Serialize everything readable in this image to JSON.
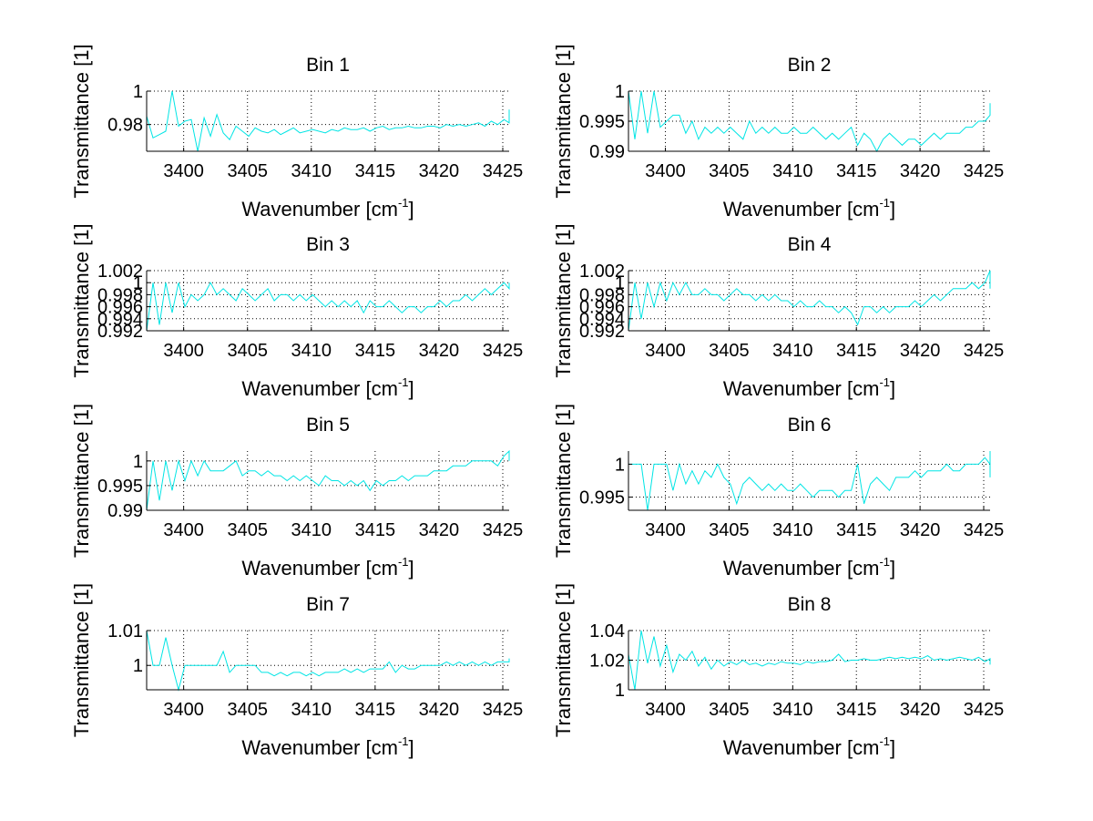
{
  "figure": {
    "background": "#ffffff",
    "line_color": "#00e5e5"
  },
  "chart_data": [
    {
      "type": "line",
      "title": "Bin 1",
      "xlabel": "Wavenumber [cm^-1]",
      "ylabel": "Transmittance [1]",
      "xlim": [
        3397.1,
        3425.5
      ],
      "ylim": [
        0.964,
        1.0
      ],
      "xticks": [
        3400,
        3405,
        3410,
        3415,
        3420,
        3425
      ],
      "xtick_labels": [
        "3400",
        "3405",
        "3410",
        "3415",
        "3420",
        "3425"
      ],
      "yticks": [
        0.98,
        1.0
      ],
      "ytick_labels": [
        "0.98",
        "1"
      ],
      "grid": true,
      "x_start": 3397.1,
      "x_step": 0.5,
      "values": [
        0.985,
        0.972,
        0.974,
        0.976,
        1.0,
        0.979,
        0.982,
        0.983,
        0.964,
        0.984,
        0.973,
        0.986,
        0.975,
        0.971,
        0.979,
        0.976,
        0.973,
        0.978,
        0.976,
        0.975,
        0.977,
        0.974,
        0.976,
        0.978,
        0.975,
        0.976,
        0.977,
        0.976,
        0.975,
        0.977,
        0.976,
        0.978,
        0.977,
        0.977,
        0.978,
        0.976,
        0.978,
        0.979,
        0.977,
        0.978,
        0.978,
        0.979,
        0.978,
        0.978,
        0.979,
        0.979,
        0.978,
        0.98,
        0.979,
        0.98,
        0.979,
        0.98,
        0.981,
        0.979,
        0.982,
        0.98,
        0.983,
        0.981,
        0.989
      ]
    },
    {
      "type": "line",
      "title": "Bin 2",
      "xlabel": "Wavenumber [cm^-1]",
      "ylabel": "Transmittance [1]",
      "xlim": [
        3397.1,
        3425.5
      ],
      "ylim": [
        0.99,
        1.0
      ],
      "xticks": [
        3400,
        3405,
        3410,
        3415,
        3420,
        3425
      ],
      "xtick_labels": [
        "3400",
        "3405",
        "3410",
        "3415",
        "3420",
        "3425"
      ],
      "yticks": [
        0.99,
        0.995,
        1.0
      ],
      "ytick_labels": [
        "0.99",
        "0.995",
        "1"
      ],
      "grid": true,
      "x_start": 3397.1,
      "x_step": 0.5,
      "values": [
        1.0,
        0.992,
        1.0,
        0.993,
        1.0,
        0.994,
        0.995,
        0.996,
        0.996,
        0.993,
        0.995,
        0.992,
        0.994,
        0.993,
        0.994,
        0.993,
        0.994,
        0.993,
        0.992,
        0.995,
        0.993,
        0.994,
        0.993,
        0.994,
        0.993,
        0.993,
        0.994,
        0.993,
        0.993,
        0.994,
        0.993,
        0.992,
        0.993,
        0.992,
        0.993,
        0.994,
        0.991,
        0.993,
        0.992,
        0.99,
        0.992,
        0.993,
        0.992,
        0.991,
        0.992,
        0.992,
        0.991,
        0.992,
        0.993,
        0.992,
        0.993,
        0.993,
        0.993,
        0.994,
        0.994,
        0.995,
        0.995,
        0.996,
        0.998,
        0.996
      ]
    },
    {
      "type": "line",
      "title": "Bin 3",
      "xlabel": "Wavenumber [cm^-1]",
      "ylabel": "Transmittance [1]",
      "xlim": [
        3397.1,
        3425.5
      ],
      "ylim": [
        0.992,
        1.002
      ],
      "xticks": [
        3400,
        3405,
        3410,
        3415,
        3420,
        3425
      ],
      "xtick_labels": [
        "3400",
        "3405",
        "3410",
        "3415",
        "3420",
        "3425"
      ],
      "yticks": [
        0.992,
        0.994,
        0.996,
        0.998,
        1.0,
        1.002
      ],
      "ytick_labels": [
        "0.992",
        "0.994",
        "0.996",
        "0.998",
        "1",
        "1.002"
      ],
      "grid": true,
      "x_start": 3397.1,
      "x_step": 0.5,
      "values": [
        0.992,
        1.0,
        0.993,
        1.0,
        0.995,
        1.0,
        0.996,
        0.998,
        0.997,
        0.998,
        1.0,
        0.998,
        0.999,
        0.998,
        0.997,
        0.999,
        0.998,
        0.997,
        0.998,
        0.999,
        0.997,
        0.998,
        0.998,
        0.997,
        0.998,
        0.997,
        0.998,
        0.997,
        0.996,
        0.997,
        0.996,
        0.997,
        0.996,
        0.997,
        0.995,
        0.997,
        0.996,
        0.996,
        0.997,
        0.996,
        0.995,
        0.996,
        0.996,
        0.995,
        0.996,
        0.996,
        0.997,
        0.996,
        0.997,
        0.997,
        0.998,
        0.997,
        0.998,
        0.999,
        0.998,
        0.999,
        1.0,
        0.999,
        1.0
      ]
    },
    {
      "type": "line",
      "title": "Bin 4",
      "xlabel": "Wavenumber [cm^-1]",
      "ylabel": "Transmittance [1]",
      "xlim": [
        3397.1,
        3425.5
      ],
      "ylim": [
        0.992,
        1.002
      ],
      "xticks": [
        3400,
        3405,
        3410,
        3415,
        3420,
        3425
      ],
      "xtick_labels": [
        "3400",
        "3405",
        "3410",
        "3415",
        "3420",
        "3425"
      ],
      "yticks": [
        0.992,
        0.994,
        0.996,
        0.998,
        1.0,
        1.002
      ],
      "ytick_labels": [
        "0.992",
        "0.994",
        "0.996",
        "0.998",
        "1",
        "1.002"
      ],
      "grid": true,
      "x_start": 3397.1,
      "x_step": 0.5,
      "values": [
        0.992,
        1.0,
        0.994,
        1.0,
        0.996,
        1.0,
        0.997,
        1.0,
        0.998,
        1.0,
        0.998,
        0.998,
        0.999,
        0.998,
        0.998,
        0.997,
        0.998,
        0.999,
        0.998,
        0.998,
        0.997,
        0.998,
        0.997,
        0.998,
        0.997,
        0.997,
        0.996,
        0.997,
        0.996,
        0.996,
        0.997,
        0.996,
        0.996,
        0.995,
        0.996,
        0.995,
        0.993,
        0.996,
        0.996,
        0.995,
        0.996,
        0.995,
        0.996,
        0.996,
        0.996,
        0.997,
        0.996,
        0.997,
        0.998,
        0.997,
        0.998,
        0.999,
        0.999,
        0.999,
        1.0,
        0.999,
        1.0,
        1.002,
        0.999
      ]
    },
    {
      "type": "line",
      "title": "Bin 5",
      "xlabel": "Wavenumber [cm^-1]",
      "ylabel": "Transmittance [1]",
      "xlim": [
        3397.1,
        3425.5
      ],
      "ylim": [
        0.99,
        1.002
      ],
      "xticks": [
        3400,
        3405,
        3410,
        3415,
        3420,
        3425
      ],
      "xtick_labels": [
        "3400",
        "3405",
        "3410",
        "3415",
        "3420",
        "3425"
      ],
      "yticks": [
        0.99,
        0.995,
        1.0
      ],
      "ytick_labels": [
        "0.99",
        "0.995",
        "1"
      ],
      "grid": true,
      "x_start": 3397.1,
      "x_step": 0.5,
      "values": [
        0.99,
        1.0,
        0.992,
        1.0,
        0.994,
        1.0,
        0.996,
        1.0,
        0.997,
        1.0,
        0.998,
        0.998,
        0.998,
        0.999,
        1.0,
        0.997,
        0.998,
        0.998,
        0.997,
        0.998,
        0.997,
        0.997,
        0.996,
        0.997,
        0.996,
        0.997,
        0.996,
        0.995,
        0.997,
        0.996,
        0.996,
        0.995,
        0.996,
        0.995,
        0.996,
        0.994,
        0.996,
        0.995,
        0.996,
        0.996,
        0.997,
        0.996,
        0.997,
        0.997,
        0.997,
        0.998,
        0.998,
        0.998,
        0.999,
        0.999,
        0.999,
        1.0,
        1.0,
        1.0,
        1.0,
        0.999,
        1.001,
        1.002,
        1.0
      ]
    },
    {
      "type": "line",
      "title": "Bin 6",
      "xlabel": "Wavenumber [cm^-1]",
      "ylabel": "Transmittance [1]",
      "xlim": [
        3397.1,
        3425.5
      ],
      "ylim": [
        0.993,
        1.002
      ],
      "xticks": [
        3400,
        3405,
        3410,
        3415,
        3420,
        3425
      ],
      "xtick_labels": [
        "3400",
        "3405",
        "3410",
        "3415",
        "3420",
        "3425"
      ],
      "yticks": [
        0.995,
        1.0
      ],
      "ytick_labels": [
        "0.995",
        "1"
      ],
      "grid": true,
      "x_start": 3397.1,
      "x_step": 0.5,
      "values": [
        1.0,
        1.0,
        1.0,
        0.993,
        1.0,
        1.0,
        1.0,
        0.996,
        1.0,
        0.997,
        0.999,
        0.997,
        0.999,
        0.998,
        1.0,
        0.998,
        0.997,
        0.994,
        0.997,
        0.998,
        0.997,
        0.996,
        0.997,
        0.996,
        0.997,
        0.996,
        0.996,
        0.997,
        0.996,
        0.995,
        0.996,
        0.996,
        0.996,
        0.995,
        0.996,
        0.996,
        1.0,
        0.994,
        0.997,
        0.998,
        0.997,
        0.996,
        0.998,
        0.998,
        0.998,
        0.999,
        0.998,
        0.999,
        0.999,
        0.999,
        1.0,
        0.999,
        0.999,
        1.0,
        1.0,
        1.0,
        1.001,
        1.0,
        1.002,
        0.998
      ]
    },
    {
      "type": "line",
      "title": "Bin 7",
      "xlabel": "Wavenumber [cm^-1]",
      "ylabel": "Transmittance [1]",
      "xlim": [
        3397.1,
        3425.5
      ],
      "ylim": [
        0.993,
        1.01
      ],
      "xticks": [
        3400,
        3405,
        3410,
        3415,
        3420,
        3425
      ],
      "xtick_labels": [
        "3400",
        "3405",
        "3410",
        "3415",
        "3420",
        "3425"
      ],
      "yticks": [
        1.0,
        1.01
      ],
      "ytick_labels": [
        "1",
        "1.01"
      ],
      "grid": true,
      "x_start": 3397.1,
      "x_step": 0.5,
      "values": [
        1.01,
        1.0,
        1.0,
        1.008,
        1.0,
        0.993,
        1.0,
        1.0,
        1.0,
        1.0,
        1.0,
        1.0,
        1.004,
        0.998,
        1.0,
        1.0,
        1.0,
        1.0,
        0.998,
        0.998,
        0.997,
        0.998,
        0.997,
        0.998,
        0.998,
        0.997,
        0.998,
        0.997,
        0.998,
        0.998,
        0.998,
        0.999,
        0.998,
        0.999,
        0.998,
        0.999,
        0.999,
        0.999,
        1.001,
        0.998,
        1.0,
        0.999,
        0.999,
        1.0,
        1.0,
        1.0,
        1.0,
        1.001,
        1.0,
        1.001,
        1.0,
        1.001,
        1.0,
        1.001,
        1.0,
        1.001,
        1.001,
        1.001,
        1.002
      ]
    },
    {
      "type": "line",
      "title": "Bin 8",
      "xlabel": "Wavenumber [cm^-1]",
      "ylabel": "Transmittance [1]",
      "xlim": [
        3397.1,
        3425.5
      ],
      "ylim": [
        1.0,
        1.04
      ],
      "xticks": [
        3400,
        3405,
        3410,
        3415,
        3420,
        3425
      ],
      "xtick_labels": [
        "3400",
        "3405",
        "3410",
        "3415",
        "3420",
        "3425"
      ],
      "yticks": [
        1.0,
        1.02,
        1.04
      ],
      "ytick_labels": [
        "1",
        "1.02",
        "1.04"
      ],
      "grid": true,
      "x_start": 3397.1,
      "x_step": 0.5,
      "values": [
        1.024,
        1.0,
        1.04,
        1.018,
        1.036,
        1.016,
        1.03,
        1.012,
        1.024,
        1.02,
        1.026,
        1.016,
        1.022,
        1.014,
        1.02,
        1.016,
        1.019,
        1.017,
        1.02,
        1.017,
        1.018,
        1.016,
        1.018,
        1.017,
        1.019,
        1.018,
        1.018,
        1.017,
        1.019,
        1.018,
        1.019,
        1.019,
        1.02,
        1.024,
        1.019,
        1.02,
        1.02,
        1.021,
        1.02,
        1.02,
        1.021,
        1.022,
        1.021,
        1.022,
        1.021,
        1.022,
        1.021,
        1.023,
        1.02,
        1.021,
        1.02,
        1.021,
        1.022,
        1.021,
        1.02,
        1.022,
        1.019,
        1.021,
        1.017
      ]
    }
  ]
}
